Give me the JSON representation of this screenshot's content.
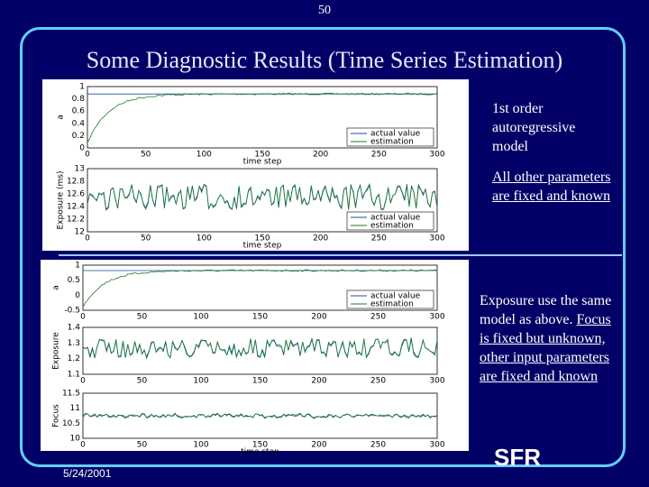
{
  "page_number": "50",
  "title": "Some Diagnostic Results (Time Series Estimation)",
  "date": "5/24/2001",
  "logo": "SFR",
  "notes": [
    {
      "text": "1st order autoregressive model",
      "underlined": ""
    },
    {
      "text": "",
      "underlined": "All other parameters are fixed and known"
    },
    {
      "text": "Exposure use the same model as above.",
      "underlined": "Focus is fixed but unknown, other input parameters are fixed and known"
    }
  ],
  "figures": [
    {
      "panels": [
        {
          "ylabel": "a",
          "yticks": [
            "1",
            "0.8",
            "0.6",
            "0.4",
            "0.2",
            "0"
          ],
          "xticks": [
            "0",
            "50",
            "100",
            "150",
            "200",
            "250",
            "300"
          ],
          "xlabel": "time step",
          "legend": [
            "actual value",
            "estimation"
          ]
        },
        {
          "ylabel": "Exposure (ms)",
          "yticks": [
            "13",
            "12.8",
            "12.6",
            "12.4",
            "12.2",
            "12"
          ],
          "xticks": [
            "0",
            "50",
            "100",
            "150",
            "200",
            "250",
            "300"
          ],
          "xlabel": "time step",
          "legend": [
            "actual value",
            "estimation"
          ]
        }
      ]
    },
    {
      "panels": [
        {
          "ylabel": "a",
          "yticks": [
            "1",
            "0.5",
            "0",
            "-0.5"
          ],
          "xticks": [
            "0",
            "50",
            "100",
            "150",
            "200",
            "250",
            "300"
          ],
          "legend": [
            "actual value",
            "estimation"
          ]
        },
        {
          "ylabel": "Exposure",
          "yticks": [
            "1.4",
            "1.3",
            "1.2",
            "1.1"
          ],
          "xticks": [
            "0",
            "50",
            "100",
            "150",
            "200",
            "250",
            "300"
          ]
        },
        {
          "ylabel": "Focus",
          "yticks": [
            "11.5",
            "11",
            "10.5",
            "10"
          ],
          "xticks": [
            "0",
            "50",
            "100",
            "150",
            "200",
            "250",
            "300"
          ],
          "xlabel": "time step"
        }
      ]
    }
  ]
}
